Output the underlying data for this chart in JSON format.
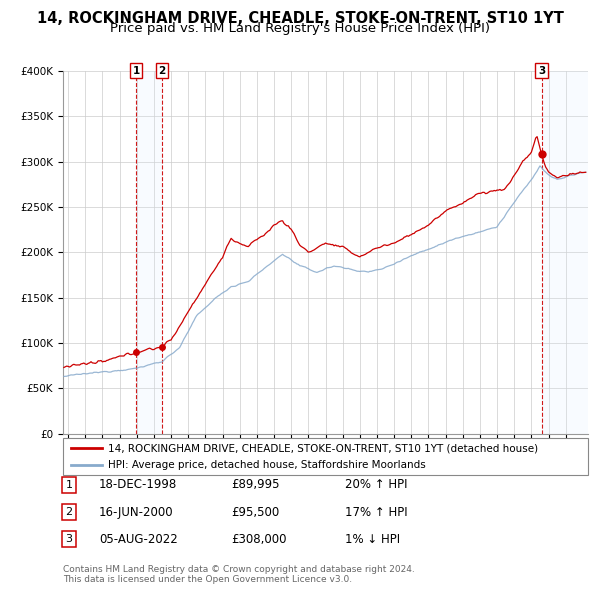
{
  "title": "14, ROCKINGHAM DRIVE, CHEADLE, STOKE-ON-TRENT, ST10 1YT",
  "subtitle": "Price paid vs. HM Land Registry's House Price Index (HPI)",
  "ylim": [
    0,
    400000
  ],
  "yticks": [
    0,
    50000,
    100000,
    150000,
    200000,
    250000,
    300000,
    350000,
    400000
  ],
  "ytick_labels": [
    "£0",
    "£50K",
    "£100K",
    "£150K",
    "£200K",
    "£250K",
    "£300K",
    "£350K",
    "£400K"
  ],
  "legend_line1": "14, ROCKINGHAM DRIVE, CHEADLE, STOKE-ON-TRENT, ST10 1YT (detached house)",
  "legend_line2": "HPI: Average price, detached house, Staffordshire Moorlands",
  "sale1_date": "18-DEC-1998",
  "sale1_price": 89995,
  "sale1_price_str": "£89,995",
  "sale1_hpi": "20% ↑ HPI",
  "sale1_x": 1998.96,
  "sale1_y": 89995,
  "sale2_date": "16-JUN-2000",
  "sale2_price": 95500,
  "sale2_price_str": "£95,500",
  "sale2_hpi": "17% ↑ HPI",
  "sale2_x": 2000.46,
  "sale2_y": 95500,
  "sale3_date": "05-AUG-2022",
  "sale3_price": 308000,
  "sale3_price_str": "£308,000",
  "sale3_hpi": "1% ↓ HPI",
  "sale3_x": 2022.59,
  "sale3_y": 308000,
  "footer1": "Contains HM Land Registry data © Crown copyright and database right 2024.",
  "footer2": "This data is licensed under the Open Government Licence v3.0.",
  "line_color_red": "#cc0000",
  "line_color_blue": "#88aacc",
  "vline_color": "#cc0000",
  "shade_color": "#ddeeff",
  "background_color": "#ffffff",
  "grid_color": "#cccccc",
  "title_fontsize": 10.5,
  "subtitle_fontsize": 9.5,
  "xmin": 1994.7,
  "xmax": 2025.3
}
